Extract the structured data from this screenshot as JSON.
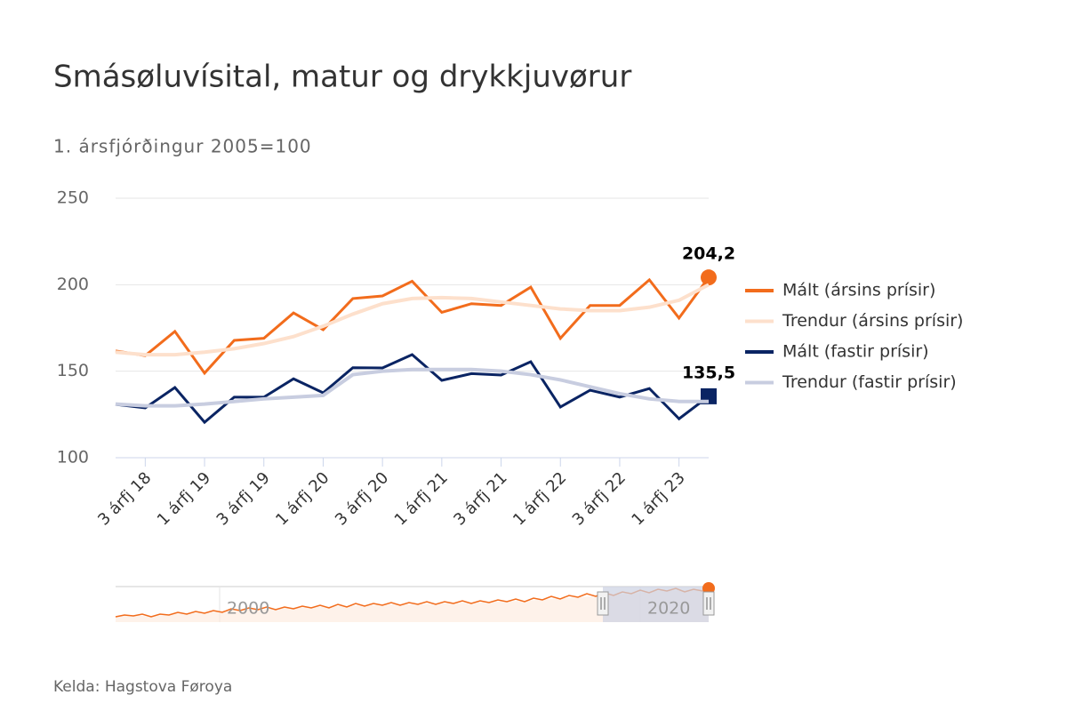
{
  "chart_data": {
    "type": "line",
    "title": "Smásøluvísital, matur og drykkjuvørur",
    "subtitle": "1. ársfjórðingur 2005=100",
    "source": "Kelda: Hagstova Føroya",
    "categories": [
      null,
      "3 árfj 18",
      null,
      "1 árfj 19",
      null,
      "3 árfj 19",
      null,
      "1 árfj 20",
      null,
      "3 árfj 20",
      null,
      "1 árfj 21",
      null,
      "3 árfj 21",
      null,
      "1 árfj 22",
      null,
      "3 árfj 22",
      null,
      "1 árfj 23",
      null
    ],
    "ylim": [
      100,
      250
    ],
    "yticks": [
      100,
      150,
      200,
      250
    ],
    "grid": true,
    "legend": "right",
    "series": [
      {
        "name": "Mált (ársins prísir)",
        "color": "#f26c1c",
        "marker": "circle",
        "values": [
          161.7,
          159,
          173,
          148.9,
          167.8,
          169,
          183.7,
          174,
          192,
          193.5,
          202,
          184,
          189,
          188,
          198.6,
          169,
          188,
          188,
          202.8,
          180.7,
          204.2
        ],
        "value_labels": [
          null,
          null,
          null,
          null,
          null,
          null,
          null,
          null,
          null,
          null,
          null,
          null,
          null,
          null,
          null,
          null,
          null,
          null,
          null,
          null,
          "204,2"
        ]
      },
      {
        "name": "Trendur (ársins prísir)",
        "color": "#fde0cc",
        "values": [
          161,
          159.5,
          159.5,
          161,
          163,
          166,
          170,
          176,
          183,
          189,
          192,
          192.5,
          192,
          190,
          188,
          186,
          185,
          185,
          187,
          191,
          200
        ]
      },
      {
        "name": "Mált (fastir prísir)",
        "color": "#0a2463",
        "marker": "square",
        "values": [
          130.8,
          128.8,
          140.6,
          120.5,
          135,
          135,
          145.6,
          137.5,
          152,
          151.9,
          159.6,
          144.7,
          148.6,
          147.8,
          155.5,
          129.3,
          139,
          135,
          140,
          122.5,
          135.5
        ],
        "value_labels": [
          null,
          null,
          null,
          null,
          null,
          null,
          null,
          null,
          null,
          null,
          null,
          null,
          null,
          null,
          null,
          null,
          null,
          null,
          null,
          null,
          "135,5"
        ]
      },
      {
        "name": "Trendur (fastir prísir)",
        "color": "#c8cde0",
        "values": [
          131,
          130,
          130,
          131,
          132.5,
          134,
          135,
          136,
          148,
          150,
          151,
          151,
          151,
          150,
          148,
          145,
          141,
          137,
          134,
          132.5,
          132.5
        ]
      }
    ],
    "navigator": {
      "labels": [
        "2000",
        "2020"
      ]
    }
  }
}
